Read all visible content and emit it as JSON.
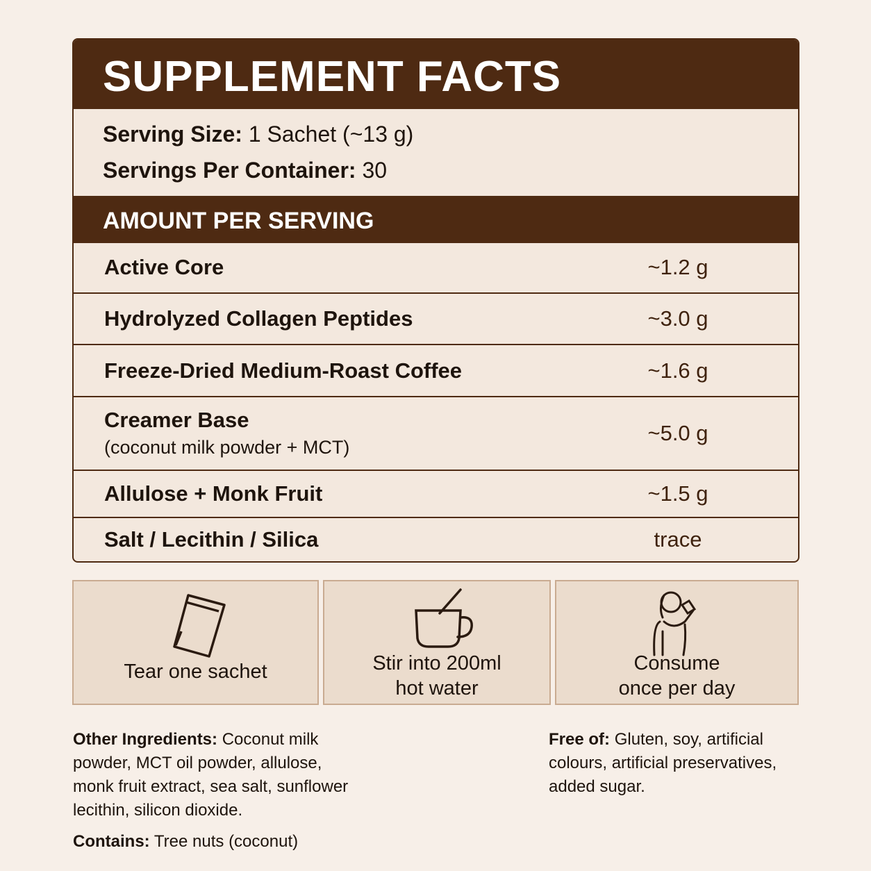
{
  "header": {
    "title": "SUPPLEMENT FACTS"
  },
  "serving": [
    {
      "label": "Serving Size:",
      "value": "1 Sachet (~13 g)"
    },
    {
      "label": "Servings Per Container:",
      "value": "30"
    }
  ],
  "section_title": "AMOUNT PER SERVING",
  "rows": [
    {
      "name": "Active Core",
      "amount": "~1.2 g"
    },
    {
      "name": "Hydrolyzed Collagen Peptides",
      "amount": "~3.0 g"
    },
    {
      "name": "Freeze-Dried Medium-Roast Coffee",
      "amount": "~1.6 g"
    },
    {
      "name": "Creamer Base",
      "note": "(coconut milk powder + MCT)",
      "amount": "~5.0 g"
    },
    {
      "name": "Allulose + Monk Fruit",
      "amount": "~1.5 g"
    },
    {
      "name": "Salt / Lecithin / Silica",
      "amount": "trace"
    }
  ],
  "steps": [
    {
      "lines": [
        "Tear one sachet"
      ]
    },
    {
      "lines": [
        "Stir into 200ml",
        "hot water"
      ]
    },
    {
      "lines": [
        "Consume",
        "once per day"
      ]
    }
  ],
  "other_ingredients": {
    "label": "Other Ingredients:",
    "text": "Coconut milk powder, MCT oil powder, allulose, monk fruit extract, sea salt, sunflower lecithin, silicon dioxide."
  },
  "contains": {
    "label": "Contains:",
    "text": "Tree nuts (coconut)"
  },
  "free_of": {
    "label": "Free of:",
    "text": "Gluten, soy, artificial colours, artificial preservatives, added sugar."
  }
}
